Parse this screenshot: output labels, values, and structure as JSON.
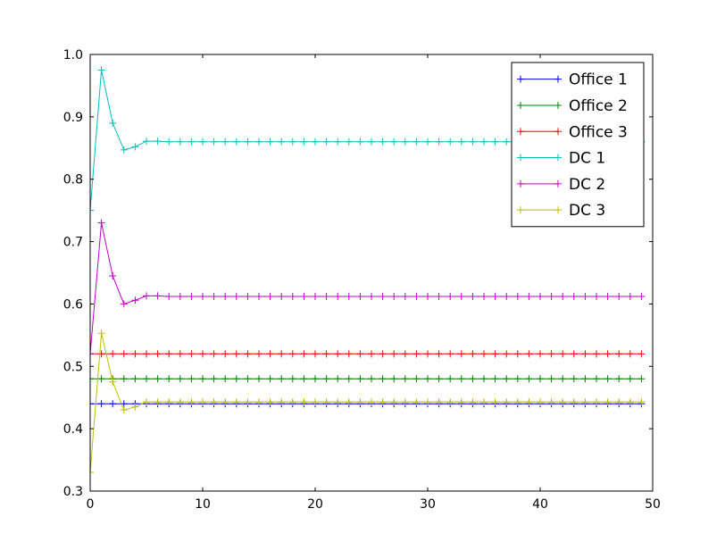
{
  "chart_data": {
    "type": "line",
    "title": "",
    "xlabel": "",
    "ylabel": "",
    "xlim": [
      0,
      50
    ],
    "ylim": [
      0.3,
      1.0
    ],
    "xticks": [
      0,
      10,
      20,
      30,
      40,
      50
    ],
    "yticks": [
      0.3,
      0.4,
      0.5,
      0.6,
      0.7,
      0.8,
      0.9,
      1.0
    ],
    "xtick_labels": [
      "0",
      "10",
      "20",
      "30",
      "40",
      "50"
    ],
    "ytick_labels": [
      "0.3",
      "0.4",
      "0.5",
      "0.6",
      "0.7",
      "0.8",
      "0.9",
      "1.0"
    ],
    "grid": false,
    "legend_position": "top-right",
    "marker": "+",
    "x_count": 50,
    "series": [
      {
        "name": "Office 1",
        "color": "#0000ff",
        "head": [],
        "steady": 0.44
      },
      {
        "name": "Office 2",
        "color": "#008000",
        "head": [],
        "steady": 0.48
      },
      {
        "name": "Office 3",
        "color": "#ff0000",
        "head": [],
        "steady": 0.52
      },
      {
        "name": "DC 1",
        "color": "#00bfbf",
        "head": [
          0.75,
          0.975,
          0.89,
          0.847,
          0.852,
          0.861,
          0.861
        ],
        "steady": 0.86
      },
      {
        "name": "DC 2",
        "color": "#bf00bf",
        "head": [
          0.52,
          0.73,
          0.645,
          0.6,
          0.606,
          0.613,
          0.613
        ],
        "steady": 0.612
      },
      {
        "name": "DC 3",
        "color": "#bfbf00",
        "head": [
          0.33,
          0.553,
          0.475,
          0.43,
          0.435,
          0.443,
          0.443
        ],
        "steady": 0.443
      }
    ]
  }
}
